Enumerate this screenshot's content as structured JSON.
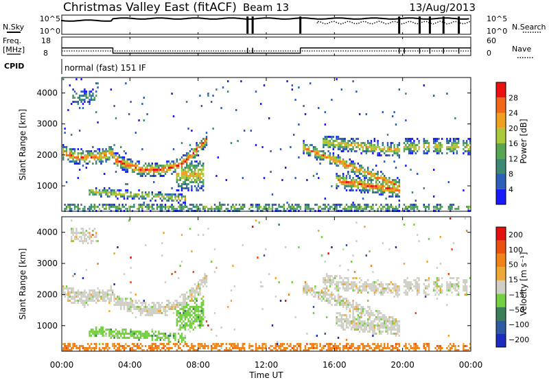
{
  "header": {
    "station": "Christmas Valley East (fitACF)",
    "beam": "Beam 13",
    "date": "13/Aug/2013"
  },
  "status_panel": {
    "nsky_label": "N.Sky",
    "nsearch_label": "N.Search",
    "left_ticks": [
      "10^5",
      "10^0"
    ],
    "right_ticks": [
      "10^5",
      "10^0"
    ]
  },
  "freq_panel": {
    "freq_label_1": "Freq.",
    "freq_label_2": "[MHz]",
    "left_ticks": [
      "18",
      "8"
    ],
    "nave_label": "Nave",
    "right_ticks": [
      "60",
      "0"
    ]
  },
  "cpid": {
    "label": "CPID",
    "mode": "normal (fast) 151 IF"
  },
  "chart_data": [
    {
      "type": "heatmap",
      "name": "power",
      "ylabel": "Slant Range [km]",
      "ylim": [
        180,
        4500
      ],
      "y_ticks": [
        "1000",
        "2000",
        "3000",
        "4000"
      ],
      "colorbar_label": "Power [dB]",
      "colorbar_ticks": [
        "4",
        "8",
        "12",
        "16",
        "20",
        "24",
        "28"
      ],
      "colors": [
        "#1a1aff",
        "#2f5fb8",
        "#3c8a73",
        "#58a653",
        "#a9c83a",
        "#f0a020",
        "#f06818",
        "#ee1010"
      ],
      "scale": [
        0,
        32
      ]
    },
    {
      "type": "heatmap",
      "name": "velocity",
      "ylabel": "Slant Range [km]",
      "ylim": [
        180,
        4500
      ],
      "y_ticks": [
        "1000",
        "2000",
        "3000",
        "4000"
      ],
      "colorbar_label": "Velocity [m s⁻¹]",
      "colorbar_ticks": [
        "200",
        "100",
        "50",
        "15",
        "−15",
        "−50",
        "−100",
        "−200"
      ],
      "colors": [
        "#1c2cc0",
        "#2e5aa0",
        "#3c7e58",
        "#74d040",
        "#cfcfc6",
        "#eea838",
        "#f08218",
        "#ec5010",
        "#e41010"
      ]
    }
  ],
  "xaxis": {
    "label": "Time UT",
    "ticks": [
      "00:00",
      "04:00",
      "08:00",
      "12:00",
      "16:00",
      "20:00",
      "00:00"
    ],
    "xlim": [
      0,
      24
    ]
  }
}
